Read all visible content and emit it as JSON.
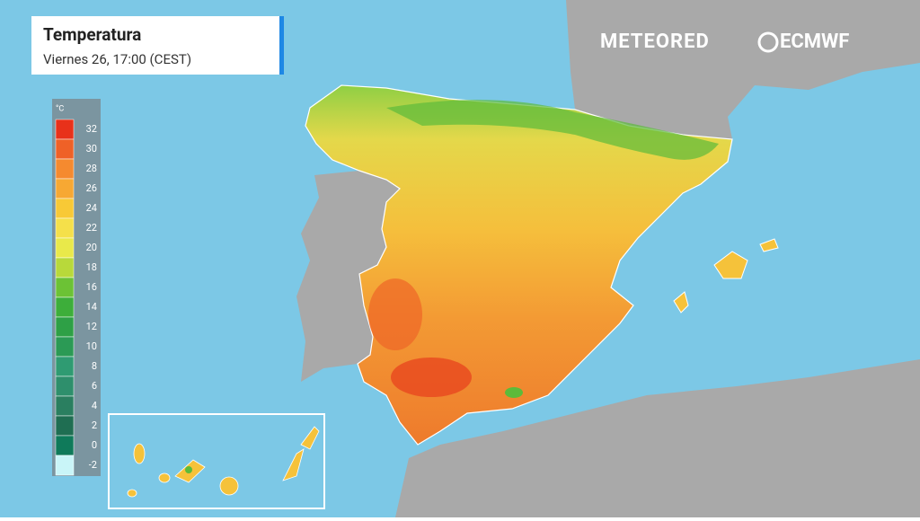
{
  "header": {
    "title": "Temperatura",
    "subtitle": "Viernes 26, 17:00 (CEST)"
  },
  "logos": [
    "METEORED",
    "ECMWF"
  ],
  "legend": {
    "unit": "°C",
    "labels": [
      32,
      30,
      28,
      26,
      24,
      22,
      20,
      18,
      16,
      14,
      12,
      10,
      8,
      6,
      4,
      2,
      0,
      -2
    ],
    "colors": [
      "#e8311a",
      "#ef6127",
      "#f58a2f",
      "#f7a833",
      "#f8c936",
      "#f5e04a",
      "#e9e94a",
      "#b8d93a",
      "#6cc235",
      "#3dae3a",
      "#2ea046",
      "#2b9a55",
      "#2f9b72",
      "#2e8f6c",
      "#2a7f60",
      "#1f6e52",
      "#0f7a5a",
      "#c9f5f8"
    ]
  }
}
